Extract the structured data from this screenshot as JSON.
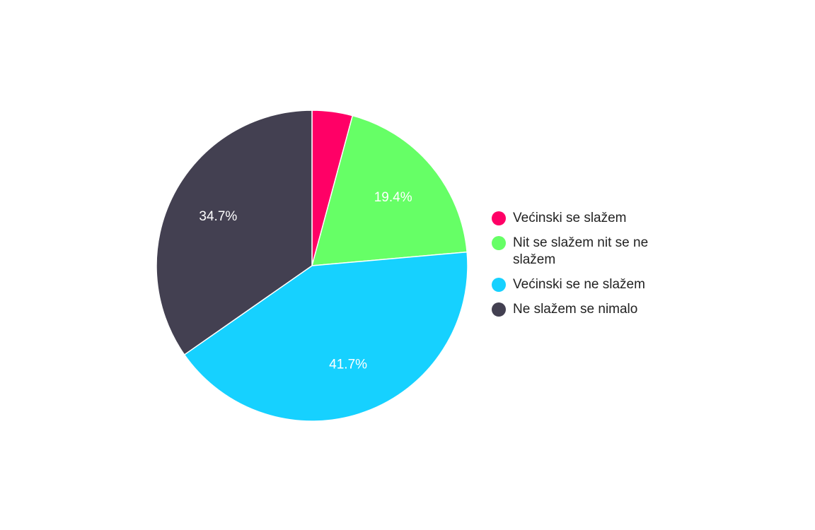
{
  "chart_data": {
    "type": "pie",
    "title": "",
    "legend_position": "right",
    "start_angle_deg": 0,
    "direction": "clockwise",
    "slices": [
      {
        "label": "Većinski se slažem",
        "value": 4.2,
        "display": "",
        "color": "#ff0066"
      },
      {
        "label": "Nit se slažem nit se ne slažem",
        "value": 19.4,
        "display": "19.4%",
        "color": "#66ff66"
      },
      {
        "label": "Većinski se ne slažem",
        "value": 41.7,
        "display": "41.7%",
        "color": "#16d1ff"
      },
      {
        "label": "Ne slažem se nimalo",
        "value": 34.7,
        "display": "34.7%",
        "color": "#434051"
      }
    ]
  }
}
